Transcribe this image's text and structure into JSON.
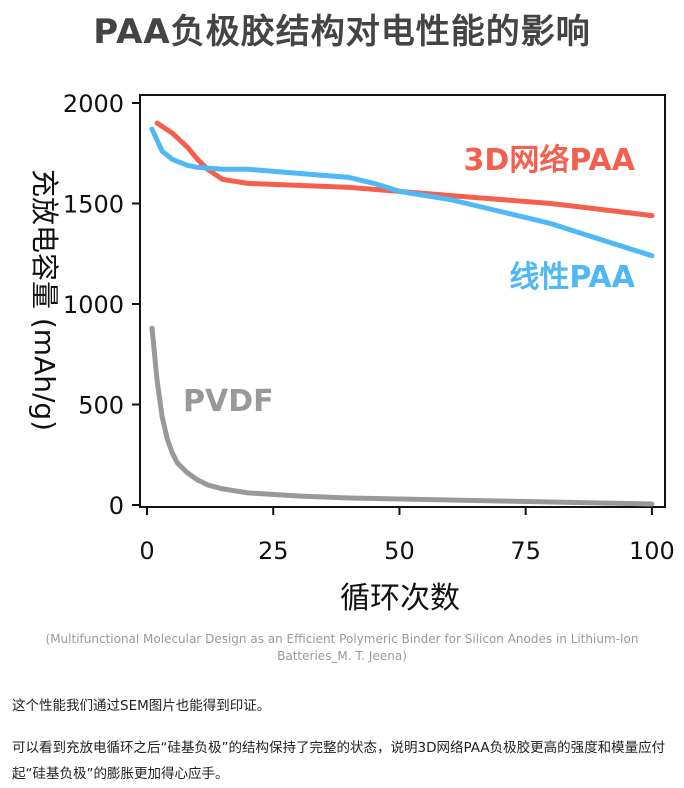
{
  "chart_data": {
    "type": "line",
    "title": "PAA负极胶结构对电性能的影响",
    "xlabel": "循环次数",
    "ylabel": "充放电容量 (mAh/g)",
    "xlim": [
      0,
      102
    ],
    "ylim": [
      0,
      2000
    ],
    "xticks": [
      "0",
      "25",
      "50",
      "75",
      "100"
    ],
    "yticks": [
      "0",
      "500",
      "1000",
      "1500",
      "2000"
    ],
    "grid": false,
    "legend": "inline labels",
    "series": [
      {
        "name": "3D网络PAA",
        "color": "#f5604e",
        "x": [
          2,
          5,
          8,
          10,
          12,
          15,
          20,
          30,
          40,
          50,
          60,
          70,
          80,
          90,
          100
        ],
        "y": [
          1900,
          1850,
          1780,
          1720,
          1670,
          1620,
          1600,
          1590,
          1580,
          1560,
          1540,
          1520,
          1500,
          1470,
          1440
        ]
      },
      {
        "name": "线性PAA",
        "color": "#4fb8f5",
        "x": [
          1,
          3,
          5,
          8,
          10,
          15,
          20,
          30,
          40,
          45,
          50,
          60,
          70,
          80,
          90,
          100
        ],
        "y": [
          1870,
          1760,
          1720,
          1690,
          1680,
          1670,
          1670,
          1650,
          1630,
          1600,
          1560,
          1520,
          1460,
          1400,
          1320,
          1240
        ]
      },
      {
        "name": "PVDF",
        "color": "#999999",
        "x": [
          1,
          2,
          3,
          4,
          5,
          6,
          8,
          10,
          12,
          15,
          20,
          30,
          40,
          50,
          60,
          70,
          80,
          90,
          100
        ],
        "y": [
          880,
          620,
          440,
          330,
          260,
          210,
          160,
          125,
          100,
          80,
          60,
          45,
          35,
          30,
          25,
          20,
          15,
          10,
          5
        ]
      }
    ]
  },
  "caption": "(Multifunctional Molecular Design as an Efficient Polymeric Binder for Silicon Anodes in Lithium-Ion Batteries_M. T. Jeena)",
  "paragraphs": [
    "这个性能我们通过SEM图片也能得到印证。",
    "可以看到充放电循环之后“硅基负极”的结构保持了完整的状态，说明3D网络PAA负极胶更高的强度和模量应付起“硅基负极”的膨胀更加得心应手。"
  ]
}
